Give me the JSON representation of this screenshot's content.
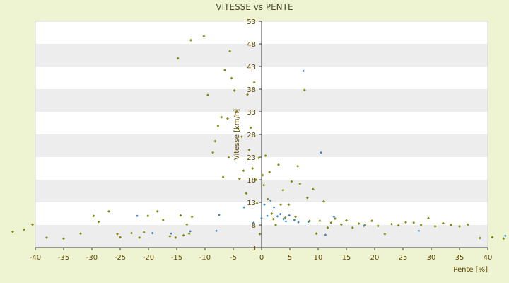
{
  "chart_data": {
    "type": "scatter",
    "title": "VITESSE vs PENTE",
    "xlabel": "Pente [%]",
    "ylabel": "Vitesse [km/h]",
    "xlim": [
      -40,
      40
    ],
    "ylim": [
      3,
      53
    ],
    "x_ticks": [
      "-40",
      "-35",
      "-30",
      "-25",
      "-20",
      "-15",
      "-10",
      "-5",
      "0",
      "5",
      "10",
      "15",
      "20",
      "25",
      "30",
      "35",
      "40"
    ],
    "y_ticks": [
      "3",
      "8",
      "13",
      "18",
      "23",
      "28",
      "33",
      "38",
      "43",
      "48",
      "53"
    ],
    "grid": "horizontal alternating bands",
    "legend": "none",
    "colors": {
      "background": "#eef3d2",
      "plot_band_light": "#ffffff",
      "plot_band_dark": "#ededed",
      "olive_marker": "#8a8f00",
      "blue_marker": "#2f89d6",
      "axis": "#3c3c3c",
      "tick_text": "#5f4a00"
    },
    "series": [
      {
        "values": [
          [
            -44,
            6.5
          ],
          [
            -42,
            7.0
          ],
          [
            -40.5,
            8.1
          ],
          [
            -38,
            5.2
          ],
          [
            -35,
            5.0
          ],
          [
            -32,
            6.1
          ],
          [
            -29.7,
            10.0
          ],
          [
            -28.8,
            8.7
          ],
          [
            -27,
            11.0
          ],
          [
            -25.5,
            6.0
          ],
          [
            -25,
            5.3
          ],
          [
            -23,
            6.2
          ],
          [
            -21.6,
            5.2
          ],
          [
            -20.8,
            6.4
          ],
          [
            -20.1,
            10.0
          ],
          [
            -18.4,
            11.0
          ],
          [
            -17.4,
            9.1
          ],
          [
            -16.2,
            5.5
          ],
          [
            -15.2,
            5.2
          ],
          [
            -14.3,
            10.1
          ],
          [
            -13.8,
            5.7
          ],
          [
            -13.2,
            8.1
          ],
          [
            -12.8,
            6.1
          ],
          [
            -12.3,
            9.8
          ],
          [
            -12.5,
            48.8
          ],
          [
            -14.8,
            44.8
          ],
          [
            -10.2,
            49.7
          ],
          [
            -9.5,
            36.7
          ],
          [
            -8.6,
            24.0
          ],
          [
            -8.2,
            26.5
          ],
          [
            -7.7,
            29.9
          ],
          [
            -7.1,
            31.8
          ],
          [
            -6.8,
            18.6
          ],
          [
            -6.5,
            42.2
          ],
          [
            -6.0,
            31.5
          ],
          [
            -5.8,
            22.9
          ],
          [
            -5.6,
            46.4
          ],
          [
            -5.3,
            40.4
          ],
          [
            -4.8,
            37.7
          ],
          [
            -4.4,
            33.1
          ],
          [
            -4.1,
            29.2
          ],
          [
            -3.9,
            18.2
          ],
          [
            -3.5,
            27.5
          ],
          [
            -3.2,
            20.0
          ],
          [
            -2.7,
            15.0
          ],
          [
            -2.5,
            36.8
          ],
          [
            -2.2,
            24.6
          ],
          [
            -1.9,
            29.5
          ],
          [
            -1.6,
            20.5
          ],
          [
            -1.3,
            39.5
          ],
          [
            -1.0,
            18.0
          ],
          [
            -0.8,
            12.8
          ],
          [
            -0.5,
            22.8
          ],
          [
            -0.3,
            6.0
          ],
          [
            0.2,
            19.0
          ],
          [
            0.4,
            16.8
          ],
          [
            0.7,
            23.3
          ],
          [
            1.1,
            13.7
          ],
          [
            1.4,
            19.7
          ],
          [
            1.8,
            10.5
          ],
          [
            2.1,
            9.3
          ],
          [
            2.5,
            8.0
          ],
          [
            3.0,
            21.3
          ],
          [
            3.4,
            12.5
          ],
          [
            3.8,
            15.7
          ],
          [
            4.2,
            9.6
          ],
          [
            4.8,
            12.5
          ],
          [
            5.3,
            17.6
          ],
          [
            6.0,
            9.8
          ],
          [
            6.4,
            21.0
          ],
          [
            6.8,
            17.1
          ],
          [
            7.6,
            37.8
          ],
          [
            8.1,
            14.0
          ],
          [
            8.5,
            8.9
          ],
          [
            9.1,
            15.9
          ],
          [
            9.7,
            6.1
          ],
          [
            10.3,
            8.9
          ],
          [
            11.0,
            13.2
          ],
          [
            11.7,
            7.4
          ],
          [
            12.3,
            8.5
          ],
          [
            13.0,
            9.4
          ],
          [
            14.1,
            8.1
          ],
          [
            15.0,
            9.0
          ],
          [
            16.1,
            7.4
          ],
          [
            17.2,
            8.3
          ],
          [
            18.3,
            8.0
          ],
          [
            19.5,
            8.9
          ],
          [
            20.6,
            7.8
          ],
          [
            21.8,
            6.0
          ],
          [
            23.0,
            8.2
          ],
          [
            24.2,
            7.9
          ],
          [
            25.5,
            8.6
          ],
          [
            26.9,
            8.5
          ],
          [
            28.2,
            8.0
          ],
          [
            29.5,
            9.5
          ],
          [
            30.7,
            7.7
          ],
          [
            32.1,
            8.4
          ],
          [
            33.5,
            8.0
          ],
          [
            35.0,
            7.7
          ],
          [
            36.5,
            8.1
          ],
          [
            38.6,
            5.1
          ],
          [
            40.8,
            5.3
          ],
          [
            42.8,
            5.0
          ]
        ]
      },
      {
        "values": [
          [
            -22,
            10.0
          ],
          [
            -19.3,
            6.2
          ],
          [
            -16,
            6.1
          ],
          [
            -12.6,
            6.6
          ],
          [
            -8.0,
            6.7
          ],
          [
            -7.5,
            10.2
          ],
          [
            -3.1,
            11.9
          ],
          [
            -1.4,
            8.5
          ],
          [
            0.0,
            9.5
          ],
          [
            0.5,
            12.5
          ],
          [
            1.0,
            10.0
          ],
          [
            1.6,
            13.4
          ],
          [
            2.2,
            11.9
          ],
          [
            2.8,
            9.9
          ],
          [
            3.3,
            10.4
          ],
          [
            3.9,
            9.3
          ],
          [
            4.3,
            8.8
          ],
          [
            4.9,
            10.1
          ],
          [
            5.8,
            9.1
          ],
          [
            6.5,
            8.6
          ],
          [
            7.4,
            42.0
          ],
          [
            8.3,
            8.7
          ],
          [
            10.5,
            24.0
          ],
          [
            11.3,
            5.8
          ],
          [
            12.8,
            9.8
          ],
          [
            18.1,
            7.8
          ],
          [
            27.8,
            6.7
          ],
          [
            43.1,
            5.6
          ]
        ]
      }
    ]
  }
}
